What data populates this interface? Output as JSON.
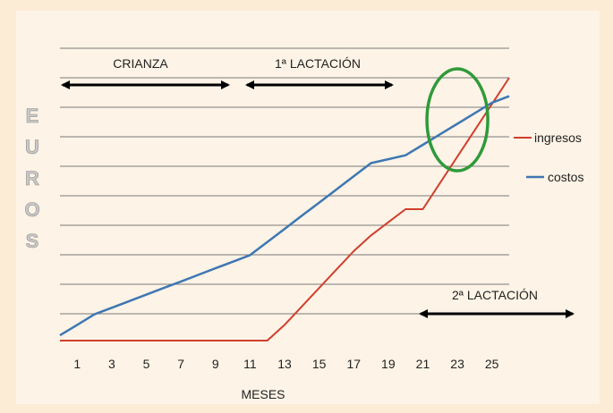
{
  "chart_data": {
    "type": "line",
    "x": [
      0,
      1,
      2,
      3,
      4,
      5,
      6,
      7,
      8,
      9,
      10,
      11,
      12,
      13,
      14,
      15,
      16,
      17,
      18,
      19,
      20,
      21,
      22,
      23,
      24,
      25,
      26
    ],
    "x_ticks": [
      1,
      3,
      5,
      7,
      9,
      11,
      13,
      15,
      17,
      19,
      21,
      23,
      25
    ],
    "xlabel": "MESES",
    "ylabel": "EUROS",
    "ylabel_letters": [
      "E",
      "U",
      "R",
      "O",
      "S"
    ],
    "xlim": [
      0,
      26
    ],
    "ylim": [
      0,
      10
    ],
    "grid": true,
    "legend_position": "right",
    "series": [
      {
        "name": "ingresos",
        "color": "#cf3f2e",
        "values": [
          0,
          0,
          0,
          0,
          0,
          0,
          0,
          0,
          0,
          0,
          0,
          0,
          0,
          0.6,
          1.3,
          2.0,
          2.7,
          3.4,
          4.0,
          4.5,
          5.0,
          5.0,
          6.0,
          7.0,
          8.0,
          9.0,
          10.0
        ]
      },
      {
        "name": "costos",
        "color": "#3f77b2",
        "values": [
          0.2,
          0.6,
          1.0,
          1.25,
          1.5,
          1.75,
          2.0,
          2.25,
          2.5,
          2.75,
          3.0,
          3.25,
          3.75,
          4.25,
          4.75,
          5.25,
          5.75,
          6.25,
          6.75,
          6.9,
          7.05,
          7.45,
          7.85,
          8.25,
          8.65,
          9.05,
          9.3
        ]
      }
    ],
    "annotations": {
      "phase_crianza": "CRIANZA",
      "phase_lactacion1": "1ª LACTACIÓN",
      "phase_lactacion2": "2ª LACTACIÓN"
    },
    "highlight": {
      "shape": "ellipse",
      "color": "#2f9a3a",
      "center_x": 23.0,
      "center_y": 8.4
    }
  }
}
